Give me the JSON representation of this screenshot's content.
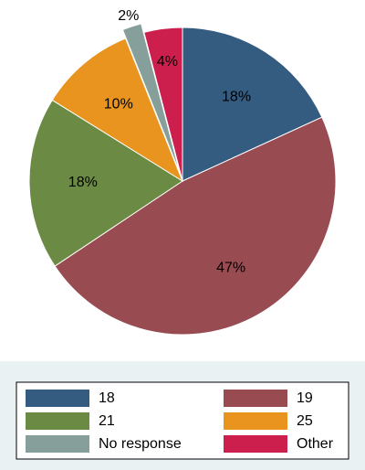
{
  "chart_data": {
    "type": "pie",
    "categories": [
      "18",
      "19",
      "21",
      "25",
      "No response",
      "Other"
    ],
    "values": [
      18,
      47,
      18,
      10,
      2,
      4
    ],
    "value_labels": [
      "18%",
      "47%",
      "18%",
      "10%",
      "2%",
      "4%"
    ],
    "colors": [
      "#345b80",
      "#984b51",
      "#6b8a44",
      "#e8941f",
      "#879f9a",
      "#cc1f4e"
    ],
    "exploded": "No response",
    "legend": "bottom"
  }
}
